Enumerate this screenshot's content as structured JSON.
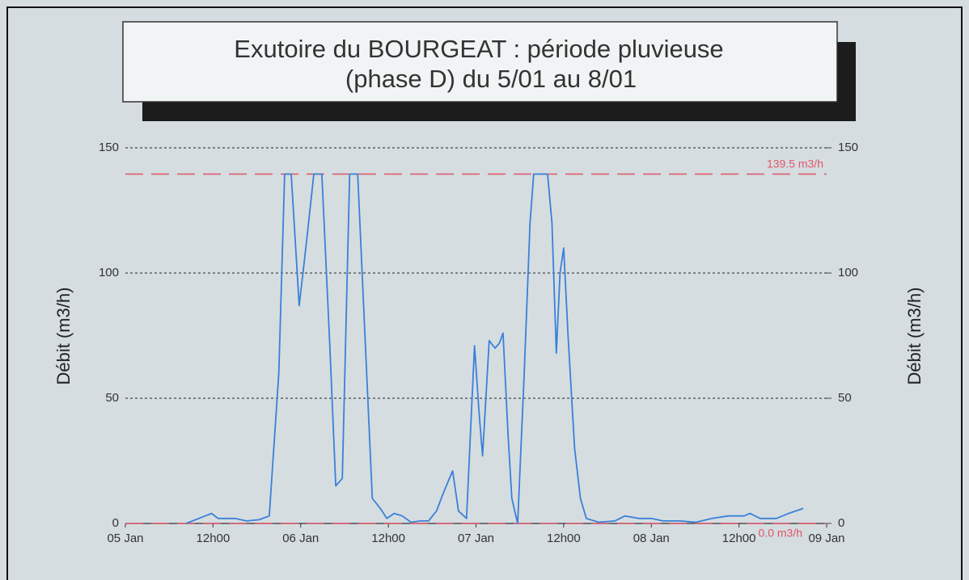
{
  "chart_data": {
    "type": "line",
    "title": [
      "Exutoire du BOURGEAT : période pluvieuse",
      "(phase D) du 5/01 au 8/01"
    ],
    "ylabel": "Débit  (m3/h)",
    "y2label": "Débit  (m3/h)",
    "xlim": [
      0,
      96
    ],
    "xticks": [
      {
        "value": 0,
        "label": "05 Jan"
      },
      {
        "value": 12,
        "label": "12h00"
      },
      {
        "value": 24,
        "label": "06 Jan"
      },
      {
        "value": 36,
        "label": "12h00"
      },
      {
        "value": 48,
        "label": "07 Jan"
      },
      {
        "value": 60,
        "label": "12h00"
      },
      {
        "value": 72,
        "label": "08 Jan"
      },
      {
        "value": 84,
        "label": "12h00"
      },
      {
        "value": 96,
        "label": "09 Jan"
      }
    ],
    "ylim": [
      0,
      150
    ],
    "yticks": [
      0,
      50,
      100,
      150
    ],
    "y2lim": [
      0,
      150
    ],
    "y2ticks": [
      0,
      50,
      100,
      150
    ],
    "grid": true,
    "hlines": [
      {
        "value": 139.5,
        "label": "139.5 m3/h",
        "color": "#e05566"
      },
      {
        "value": 0,
        "label": "0.0 m3/h",
        "color": "#e05566"
      }
    ],
    "series": [
      {
        "color": "#3a80d8",
        "x": [
          8.3,
          11.8,
          12.7,
          15,
          16.6,
          18.3,
          19.7,
          21,
          21.8,
          22.7,
          23.8,
          24.7,
          25.8,
          26.9,
          28,
          28.8,
          29.7,
          30.7,
          31.8,
          33.8,
          34.9,
          35.8,
          36.8,
          37.9,
          39.1,
          40.4,
          41.5,
          42.6,
          43.5,
          44.8,
          45.6,
          46.7,
          47.3,
          47.8,
          48.4,
          48.9,
          49.8,
          50.6,
          51.2,
          51.7,
          52.4,
          52.9,
          53.7,
          54.6,
          55.4,
          55.9,
          57.8,
          58.4,
          59,
          59.5,
          60,
          60.6,
          61.5,
          62.3,
          63.1,
          64.8,
          67,
          68.4,
          70.3,
          72,
          73.6,
          75.9,
          78.1,
          80.3,
          82.5,
          84.7,
          85.5,
          86.9,
          89.1,
          90.8,
          92.8
        ],
        "values": [
          0,
          4,
          2,
          2,
          1,
          1.5,
          3,
          60,
          139.5,
          139.5,
          87,
          110,
          139.5,
          139.5,
          70,
          15,
          18,
          139.5,
          139.5,
          10,
          6,
          2,
          4,
          3,
          0.5,
          1,
          1,
          5,
          12,
          21,
          5,
          2,
          40,
          71,
          45,
          27,
          73,
          70,
          72,
          76,
          35,
          10,
          0,
          60,
          120,
          139.5,
          139.5,
          120,
          68,
          100,
          110,
          75,
          30,
          10,
          2,
          0.5,
          1,
          3,
          2,
          2,
          1,
          1,
          0.5,
          2,
          3,
          3,
          4,
          2,
          2,
          4,
          6
        ]
      }
    ]
  }
}
